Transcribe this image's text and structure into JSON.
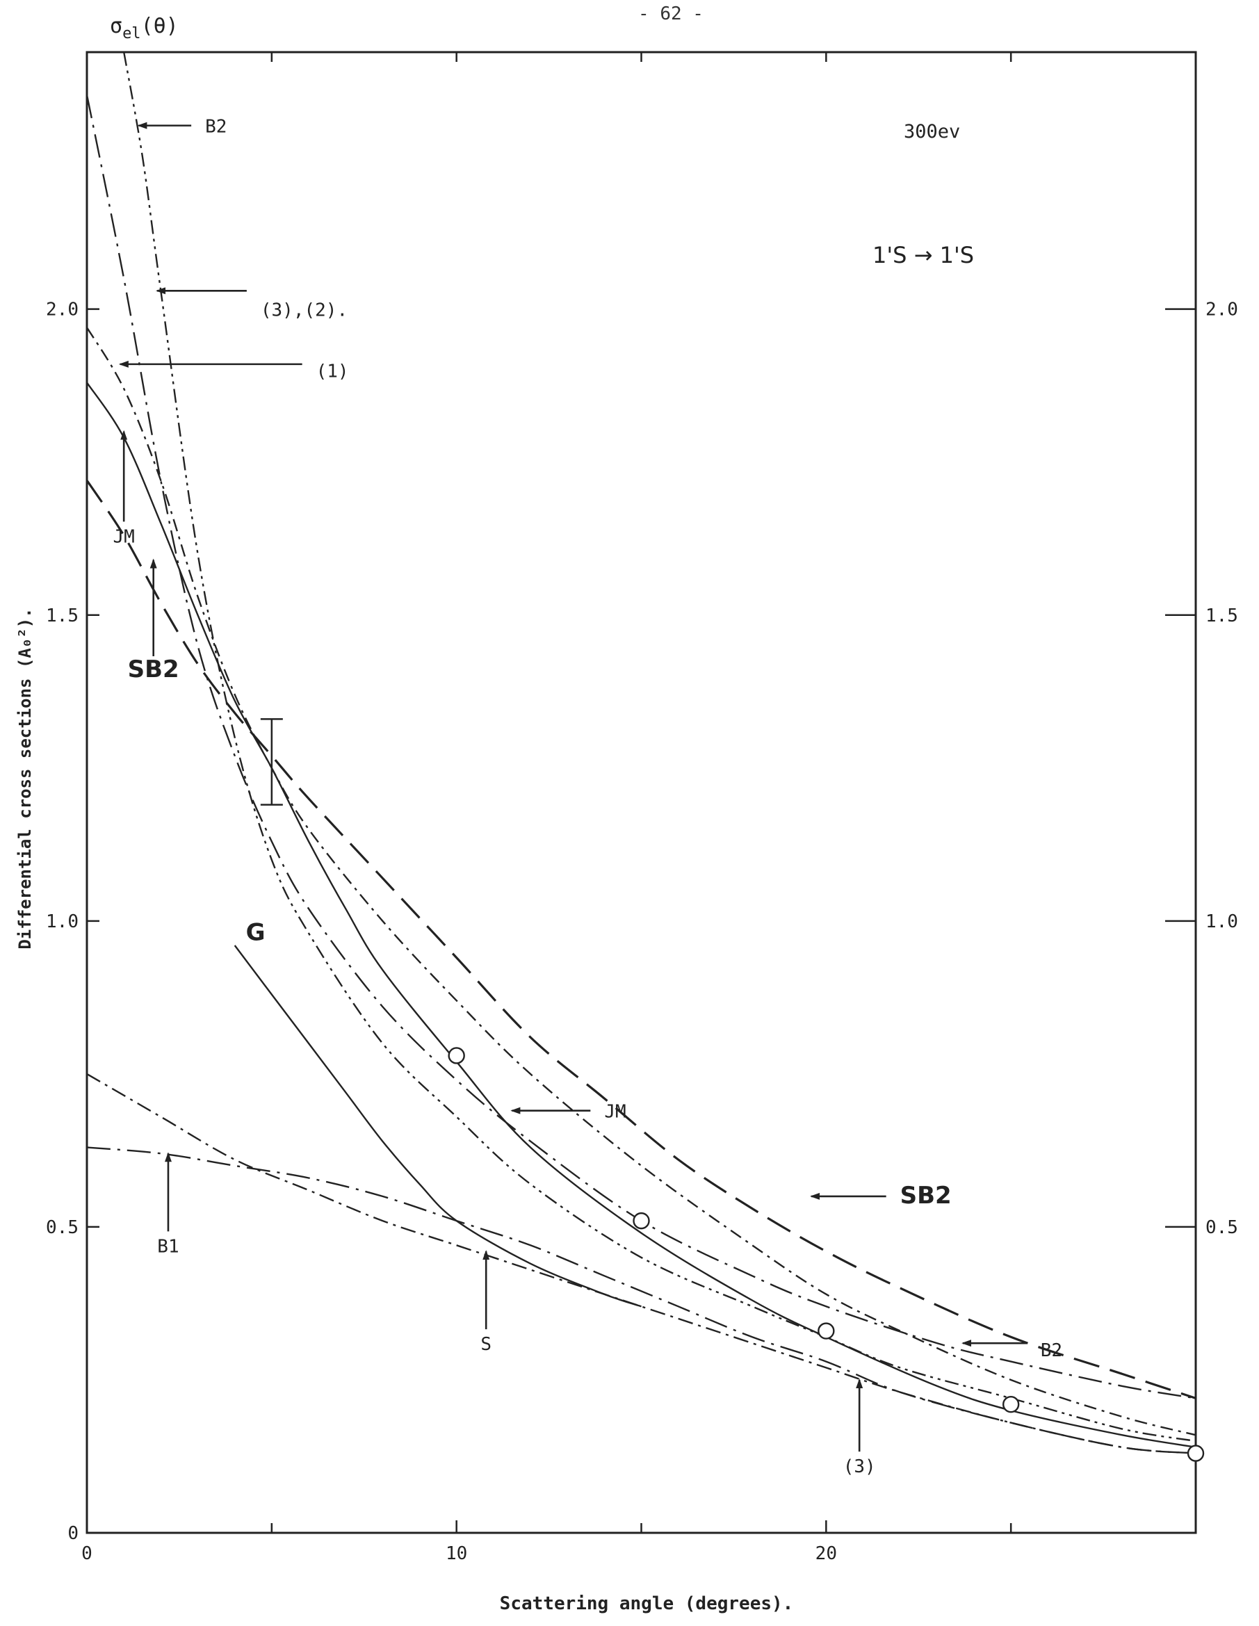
{
  "page": {
    "page_number": "- 62 -",
    "energy_label": "300ev",
    "transition_label": "1'S → 1'S",
    "y_corner_label": "σ",
    "y_corner_sub": "el",
    "y_corner_suffix": "(θ)"
  },
  "chart_data": {
    "type": "line",
    "xlabel": "Scattering angle (degrees).",
    "ylabel": "Differential cross sections (A₀²).",
    "xlim": [
      0,
      30
    ],
    "ylim": [
      0,
      2.42
    ],
    "x_ticks": [
      {
        "value": 0,
        "label": "0"
      },
      {
        "value": 10,
        "label": "10"
      },
      {
        "value": 20,
        "label": "20"
      }
    ],
    "x_minor_ticks": [
      5,
      15,
      25
    ],
    "y_ticks_left": [
      {
        "value": 0,
        "label": "0"
      },
      {
        "value": 0.5,
        "label": "0.5"
      },
      {
        "value": 1.0,
        "label": "1.0"
      },
      {
        "value": 1.5,
        "label": "1.5"
      },
      {
        "value": 2.0,
        "label": "2.0"
      }
    ],
    "y_ticks_right": [
      {
        "value": 0.5,
        "label": "0.5"
      },
      {
        "value": 1.0,
        "label": "1.0"
      },
      {
        "value": 1.5,
        "label": "1.5"
      },
      {
        "value": 2.0,
        "label": "2.0"
      }
    ],
    "grid": false,
    "series": [
      {
        "key": "b2",
        "style": "long-dash-dot",
        "x": [
          0,
          1,
          2,
          3,
          4,
          5,
          6,
          8,
          10,
          12,
          15,
          18,
          20,
          23,
          25,
          28,
          30
        ],
        "y": [
          2.35,
          2.05,
          1.72,
          1.45,
          1.27,
          1.13,
          1.02,
          0.86,
          0.74,
          0.64,
          0.51,
          0.42,
          0.37,
          0.31,
          0.28,
          0.24,
          0.22
        ]
      },
      {
        "key": "curve3_2",
        "style": "dash-dot-dot",
        "x": [
          1,
          1.5,
          2,
          3,
          4,
          5,
          6,
          8,
          10,
          12,
          15,
          18,
          20,
          22,
          25,
          28,
          30
        ],
        "y": [
          2.42,
          2.25,
          2.03,
          1.6,
          1.3,
          1.1,
          0.98,
          0.8,
          0.68,
          0.57,
          0.45,
          0.37,
          0.32,
          0.27,
          0.22,
          0.17,
          0.15
        ]
      },
      {
        "key": "curve1",
        "style": "short-dash-dot",
        "x": [
          0,
          1,
          2,
          3,
          4,
          5,
          6,
          8,
          10,
          12,
          15,
          18,
          20,
          22,
          25,
          28,
          30
        ],
        "y": [
          1.97,
          1.87,
          1.72,
          1.53,
          1.37,
          1.25,
          1.15,
          1.0,
          0.87,
          0.75,
          0.6,
          0.47,
          0.39,
          0.33,
          0.25,
          0.19,
          0.16
        ]
      },
      {
        "key": "jm",
        "style": "solid",
        "x": [
          0,
          1,
          2,
          3,
          4,
          5,
          6,
          7,
          8,
          10,
          12,
          15,
          18,
          20,
          23,
          25,
          28,
          30
        ],
        "y": [
          1.88,
          1.79,
          1.65,
          1.5,
          1.36,
          1.25,
          1.13,
          1.02,
          0.92,
          0.77,
          0.63,
          0.49,
          0.38,
          0.32,
          0.24,
          0.2,
          0.16,
          0.14
        ]
      },
      {
        "key": "sb2",
        "style": "long-dash",
        "x": [
          0,
          1,
          2,
          3,
          4,
          5,
          6,
          8,
          10,
          12,
          14,
          16,
          18,
          20,
          22,
          25,
          28,
          30
        ],
        "y": [
          1.72,
          1.63,
          1.52,
          1.42,
          1.34,
          1.27,
          1.2,
          1.07,
          0.94,
          0.81,
          0.71,
          0.61,
          0.53,
          0.46,
          0.4,
          0.32,
          0.26,
          0.22
        ]
      },
      {
        "key": "g",
        "style": "solid",
        "x": [
          4,
          5,
          6,
          7,
          8,
          9,
          10,
          12,
          14,
          15
        ],
        "y": [
          0.96,
          0.88,
          0.8,
          0.72,
          0.64,
          0.57,
          0.51,
          0.44,
          0.39,
          0.37
        ]
      },
      {
        "key": "s",
        "style": "dash-dot",
        "x": [
          0,
          2,
          4,
          6,
          8,
          10,
          12,
          14,
          16,
          18,
          20,
          22,
          25,
          28,
          30
        ],
        "y": [
          0.75,
          0.68,
          0.61,
          0.56,
          0.51,
          0.47,
          0.43,
          0.39,
          0.35,
          0.31,
          0.27,
          0.23,
          0.18,
          0.14,
          0.13
        ]
      },
      {
        "key": "b1",
        "style": "long-dash-dot",
        "x": [
          0,
          2,
          4,
          6,
          8,
          10,
          12,
          14,
          16,
          18,
          20,
          22,
          25,
          28,
          30
        ],
        "y": [
          0.63,
          0.62,
          0.6,
          0.58,
          0.55,
          0.51,
          0.47,
          0.42,
          0.37,
          0.32,
          0.28,
          0.23,
          0.18,
          0.14,
          0.13
        ]
      }
    ],
    "experimental_points": {
      "x": [
        10,
        15,
        20,
        25,
        30
      ],
      "y": [
        0.78,
        0.51,
        0.33,
        0.21,
        0.13
      ]
    },
    "error_bar": {
      "x": 5,
      "y_low": 1.19,
      "y_high": 1.33
    },
    "annotations": [
      {
        "text": "B2",
        "label_x": 3.2,
        "label_y": 2.3,
        "arrow_to_x": 1.4,
        "arrow_to_y": 2.3,
        "dir": "left"
      },
      {
        "text": "(3),(2).",
        "label_x": 4.7,
        "label_y": 2.0,
        "arrow_to_x": 1.9,
        "arrow_to_y": 2.03,
        "dir": "left"
      },
      {
        "text": "(1)",
        "label_x": 6.2,
        "label_y": 1.9,
        "arrow_to_x": 0.9,
        "arrow_to_y": 1.91,
        "dir": "left"
      },
      {
        "text": "JM",
        "label_x": 1.0,
        "label_y": 1.63,
        "arrow_to_x": 1.0,
        "arrow_to_y": 1.8,
        "dir": "up"
      },
      {
        "text": "SB2",
        "label_x": 1.8,
        "label_y": 1.41,
        "arrow_to_x": 1.8,
        "arrow_to_y": 1.59,
        "dir": "up"
      },
      {
        "text": "G",
        "label_x": 4.3,
        "label_y": 0.98,
        "arrow_to_x": null,
        "arrow_to_y": null,
        "dir": "none"
      },
      {
        "text": "JM",
        "label_x": 14.0,
        "label_y": 0.69,
        "arrow_to_x": 11.5,
        "arrow_to_y": 0.69,
        "dir": "left"
      },
      {
        "text": "SB2",
        "label_x": 22.0,
        "label_y": 0.55,
        "arrow_to_x": 19.6,
        "arrow_to_y": 0.55,
        "dir": "left"
      },
      {
        "text": "B1",
        "label_x": 2.2,
        "label_y": 0.47,
        "arrow_to_x": 2.2,
        "arrow_to_y": 0.62,
        "dir": "up"
      },
      {
        "text": "S",
        "label_x": 10.8,
        "label_y": 0.31,
        "arrow_to_x": 10.8,
        "arrow_to_y": 0.46,
        "dir": "up"
      },
      {
        "text": "B2",
        "label_x": 25.8,
        "label_y": 0.3,
        "arrow_to_x": 23.7,
        "arrow_to_y": 0.31,
        "dir": "left"
      },
      {
        "text": "(3)",
        "label_x": 20.9,
        "label_y": 0.11,
        "arrow_to_x": 20.9,
        "arrow_to_y": 0.25,
        "dir": "up"
      }
    ]
  }
}
